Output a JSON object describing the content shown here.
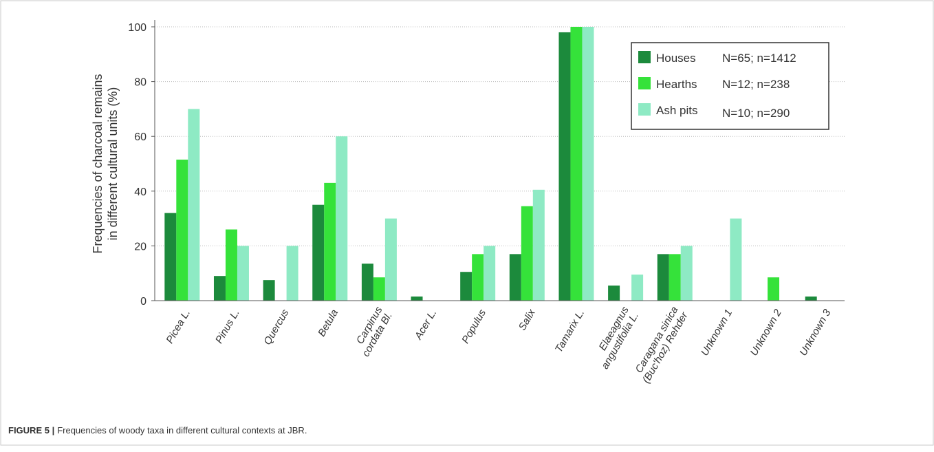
{
  "chart_data": {
    "type": "bar",
    "ylabel": [
      "Frequencies of charcoal remains",
      "in different cultural units (%)"
    ],
    "categories": [
      [
        "Picea L."
      ],
      [
        "Pinus L."
      ],
      [
        "Quercus"
      ],
      [
        "Betula"
      ],
      [
        "Carpinus",
        "cordata Bl."
      ],
      [
        "Acer L."
      ],
      [
        "Populus"
      ],
      [
        "Salix"
      ],
      [
        "Tamarix L."
      ],
      [
        "Elaeagnus",
        "angustifolia L."
      ],
      [
        "Caragana sinica",
        "(Buc'hoz) Rehder"
      ],
      [
        "Unknown 1"
      ],
      [
        "Unknown 2"
      ],
      [
        "Unknown 3"
      ]
    ],
    "series": [
      {
        "name": "Houses",
        "sample": "N=65; n=1412",
        "color": "#1c8a3c",
        "values": [
          32,
          9,
          7.5,
          35,
          13.5,
          1.5,
          10.5,
          17,
          98,
          5.5,
          17,
          0,
          0,
          1.5
        ]
      },
      {
        "name": "Hearths",
        "sample": "N=12; n=238",
        "color": "#35e23a",
        "values": [
          51.5,
          26,
          0,
          43,
          8.5,
          0,
          17,
          34.5,
          100,
          0,
          17,
          0,
          8.5,
          0
        ]
      },
      {
        "name": "Ash pits",
        "sample": "N=10; n=290",
        "color": "#8eeac4",
        "values": [
          70,
          20,
          20,
          60,
          30,
          0,
          20,
          40.5,
          100,
          9.5,
          20,
          30,
          0,
          0
        ]
      }
    ],
    "ylim": [
      0,
      100
    ],
    "yticks": [
      0,
      20,
      40,
      60,
      80,
      100
    ],
    "grid": true,
    "legend": "upper right",
    "caption_label": "FIGURE 5 |",
    "caption": "Frequencies of woody taxa in different cultural contexts at JBR."
  }
}
